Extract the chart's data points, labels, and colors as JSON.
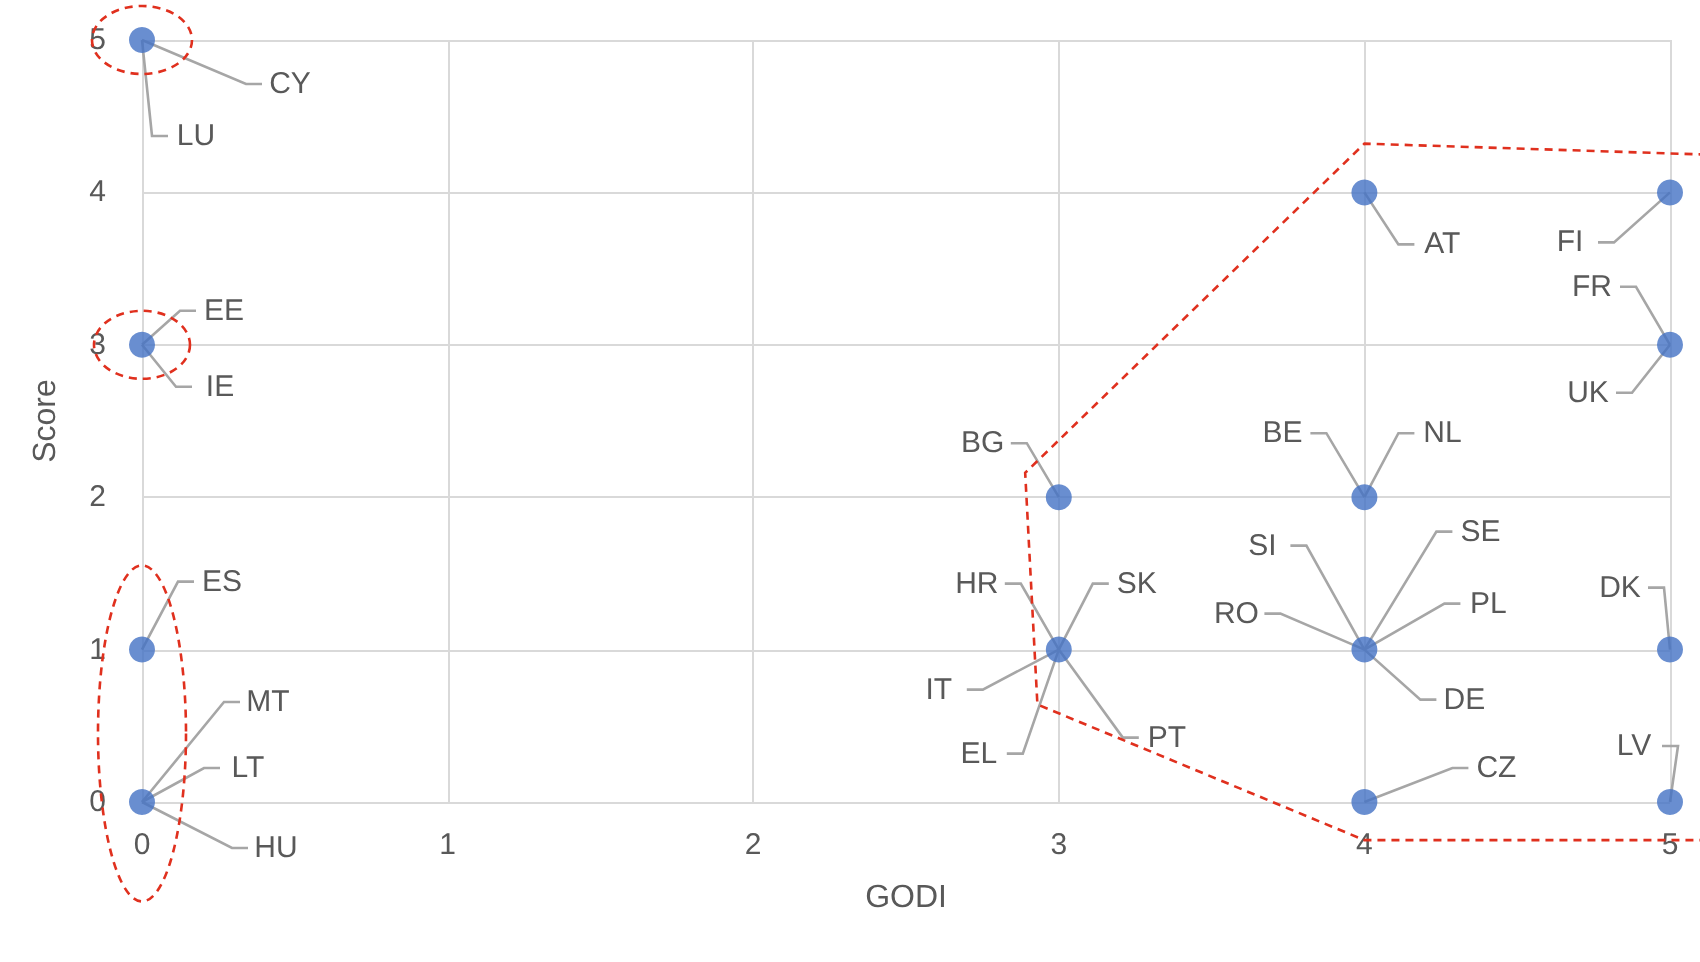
{
  "chart_data": {
    "type": "scatter",
    "xlabel": "GODI",
    "ylabel": "Score",
    "x": [
      0,
      0,
      0,
      0,
      3,
      3,
      4,
      4,
      4,
      4,
      5,
      5,
      5,
      5
    ],
    "values": [
      5,
      3,
      1,
      0,
      2,
      1,
      4,
      2,
      1,
      0,
      4,
      3,
      1,
      0
    ],
    "color": "#4472c4",
    "marker": "circle",
    "xlim": [
      0,
      5
    ],
    "ylim": [
      0,
      5
    ],
    "xticks": [
      0,
      1,
      2,
      3,
      4,
      5
    ],
    "yticks": [
      0,
      1,
      2,
      3,
      4,
      5
    ],
    "grid": true,
    "annotations": [
      {
        "text": "LU",
        "x": 0,
        "y": 5
      },
      {
        "text": "CY",
        "x": 0,
        "y": 5
      },
      {
        "text": "EE",
        "x": 0,
        "y": 3
      },
      {
        "text": "IE",
        "x": 0,
        "y": 3
      },
      {
        "text": "ES",
        "x": 0,
        "y": 1
      },
      {
        "text": "MT",
        "x": 0,
        "y": 0
      },
      {
        "text": "LT",
        "x": 0,
        "y": 0
      },
      {
        "text": "HU",
        "x": 0,
        "y": 0
      },
      {
        "text": "BG",
        "x": 3,
        "y": 2
      },
      {
        "text": "HR",
        "x": 3,
        "y": 1
      },
      {
        "text": "SK",
        "x": 3,
        "y": 1
      },
      {
        "text": "IT",
        "x": 3,
        "y": 1
      },
      {
        "text": "EL",
        "x": 3,
        "y": 1
      },
      {
        "text": "PT",
        "x": 3,
        "y": 1
      },
      {
        "text": "AT",
        "x": 4,
        "y": 4
      },
      {
        "text": "BE",
        "x": 4,
        "y": 2
      },
      {
        "text": "NL",
        "x": 4,
        "y": 2
      },
      {
        "text": "SI",
        "x": 4,
        "y": 1
      },
      {
        "text": "SE",
        "x": 4,
        "y": 1
      },
      {
        "text": "RO",
        "x": 4,
        "y": 1
      },
      {
        "text": "PL",
        "x": 4,
        "y": 1
      },
      {
        "text": "DE",
        "x": 4,
        "y": 1
      },
      {
        "text": "CZ",
        "x": 4,
        "y": 0
      },
      {
        "text": "FI",
        "x": 5,
        "y": 4
      },
      {
        "text": "FR",
        "x": 5,
        "y": 3
      },
      {
        "text": "UK",
        "x": 5,
        "y": 3
      },
      {
        "text": "DK",
        "x": 5,
        "y": 1
      },
      {
        "text": "LV",
        "x": 5,
        "y": 0
      }
    ]
  }
}
